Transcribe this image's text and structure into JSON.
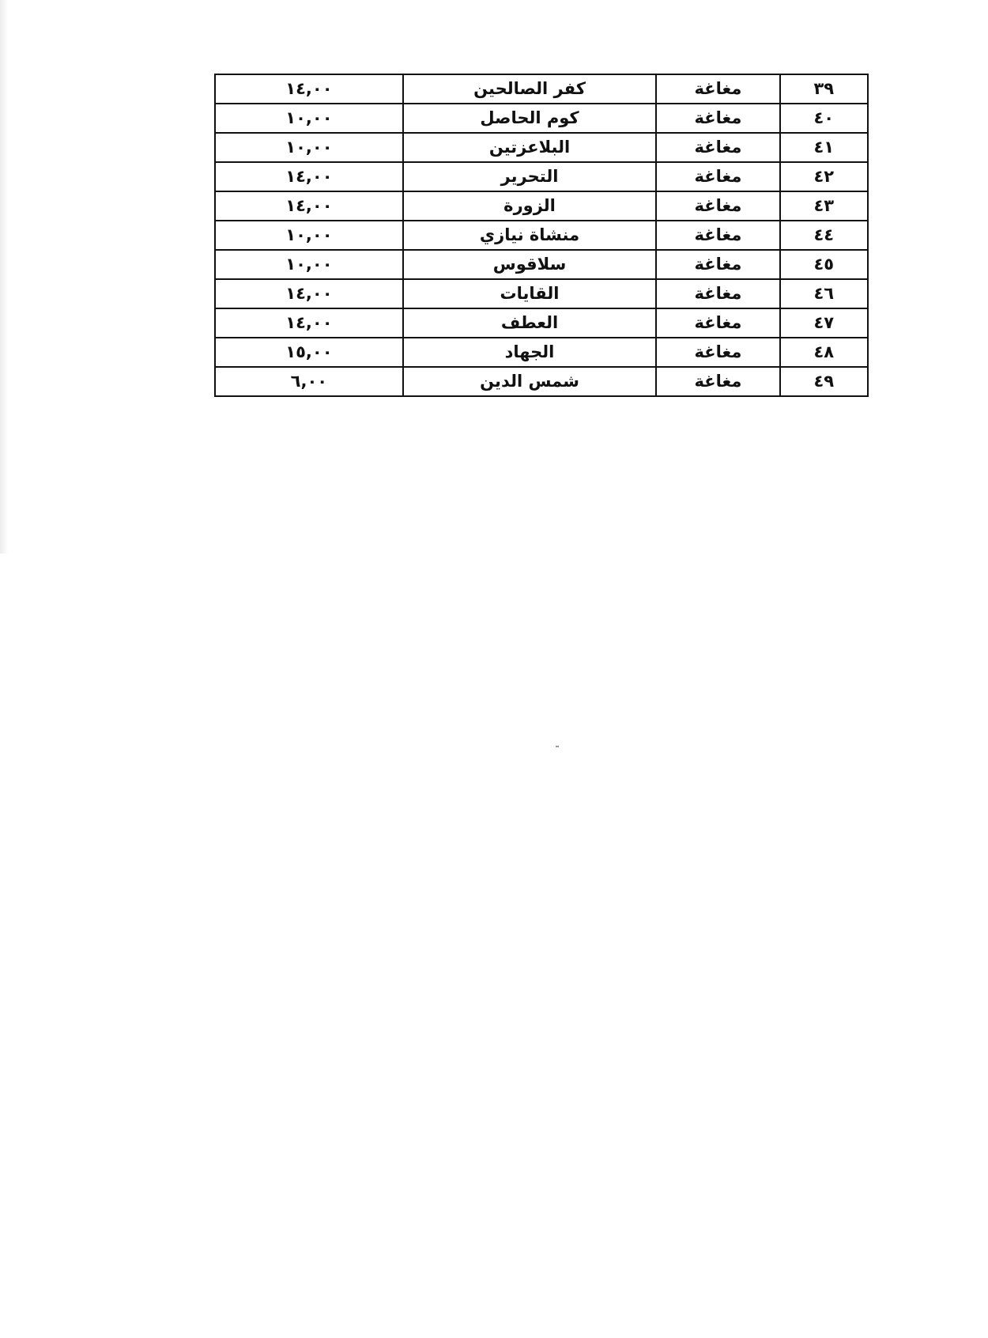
{
  "table": {
    "rows": [
      {
        "num": "٣٩",
        "status": "مغاغة",
        "name": "كفر الصالحين",
        "value": "١٤,٠٠"
      },
      {
        "num": "٤٠",
        "status": "مغاغة",
        "name": "كوم الحاصل",
        "value": "١٠,٠٠"
      },
      {
        "num": "٤١",
        "status": "مغاغة",
        "name": "البلاعزتين",
        "value": "١٠,٠٠"
      },
      {
        "num": "٤٢",
        "status": "مغاغة",
        "name": "التحرير",
        "value": "١٤,٠٠"
      },
      {
        "num": "٤٣",
        "status": "مغاغة",
        "name": "الزورة",
        "value": "١٤,٠٠"
      },
      {
        "num": "٤٤",
        "status": "مغاغة",
        "name": "منشاة نيازي",
        "value": "١٠,٠٠"
      },
      {
        "num": "٤٥",
        "status": "مغاغة",
        "name": "سلاقوس",
        "value": "١٠,٠٠"
      },
      {
        "num": "٤٦",
        "status": "مغاغة",
        "name": "القايات",
        "value": "١٤,٠٠"
      },
      {
        "num": "٤٧",
        "status": "مغاغة",
        "name": "العطف",
        "value": "١٤,٠٠"
      },
      {
        "num": "٤٨",
        "status": "مغاغة",
        "name": "الجهاد",
        "value": "١٥,٠٠"
      },
      {
        "num": "٤٩",
        "status": "مغاغة",
        "name": "شمس الدين",
        "value": "٦,٠٠"
      }
    ]
  }
}
